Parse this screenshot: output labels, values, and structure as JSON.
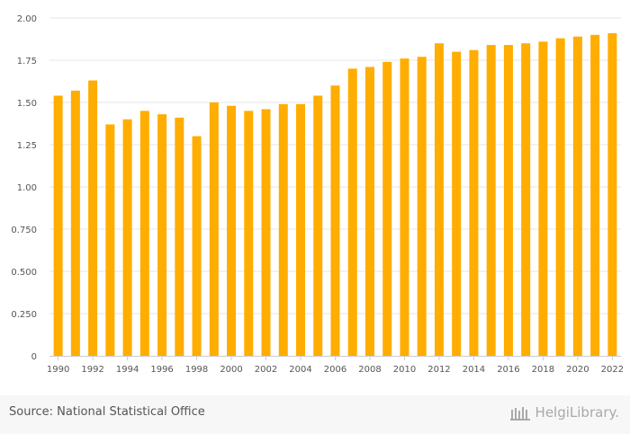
{
  "chart_data": {
    "type": "bar",
    "categories": [
      "1990",
      "1991",
      "1992",
      "1993",
      "1994",
      "1995",
      "1996",
      "1997",
      "1998",
      "1999",
      "2000",
      "2001",
      "2002",
      "2003",
      "2004",
      "2005",
      "2006",
      "2007",
      "2008",
      "2009",
      "2010",
      "2011",
      "2012",
      "2013",
      "2014",
      "2015",
      "2016",
      "2017",
      "2018",
      "2019",
      "2020",
      "2021",
      "2022"
    ],
    "x_tick_labels": [
      "1990",
      "1992",
      "1994",
      "1996",
      "1998",
      "2000",
      "2002",
      "2004",
      "2006",
      "2008",
      "2010",
      "2012",
      "2014",
      "2016",
      "2018",
      "2020",
      "2022"
    ],
    "values": [
      1.54,
      1.57,
      1.63,
      1.37,
      1.4,
      1.45,
      1.43,
      1.41,
      1.3,
      1.5,
      1.48,
      1.45,
      1.46,
      1.49,
      1.49,
      1.54,
      1.6,
      1.7,
      1.71,
      1.74,
      1.76,
      1.77,
      1.85,
      1.8,
      1.81,
      1.84,
      1.84,
      1.85,
      1.86,
      1.88,
      1.89,
      1.9,
      1.91
    ],
    "y_ticks": [
      "0",
      "0.250",
      "0.500",
      "0.750",
      "1.00",
      "1.25",
      "1.50",
      "1.75",
      "2.00"
    ],
    "ylim": [
      0,
      2
    ],
    "bar_color": "#ffad00",
    "grid": true,
    "title": "",
    "xlabel": "",
    "ylabel": ""
  },
  "footer": {
    "source_text": "Source: National Statistical Office",
    "brand_text": "HelgiLibrary."
  },
  "colors": {
    "grid": "#e6e6e6",
    "axis": "#cccccc",
    "brand": "#a9a9a9"
  }
}
